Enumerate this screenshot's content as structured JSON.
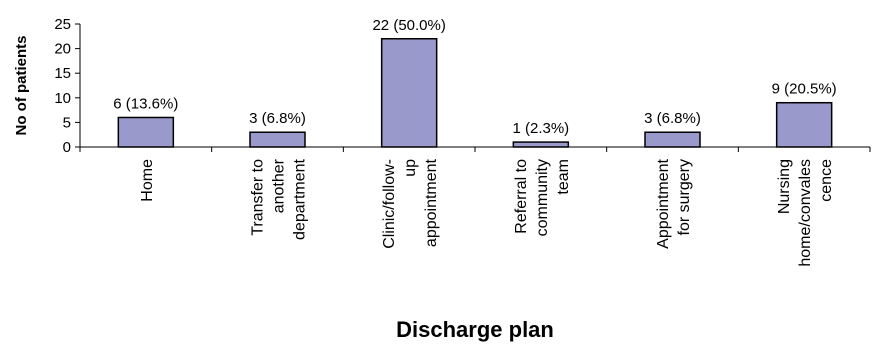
{
  "chart_data": {
    "type": "bar",
    "title": "",
    "xlabel": "Discharge plan",
    "ylabel": "No of patients",
    "ylim": [
      0,
      25
    ],
    "yticks": [
      0,
      5,
      10,
      15,
      20,
      25
    ],
    "grid": false,
    "categories": [
      [
        "Home"
      ],
      [
        "Transfer to",
        "another",
        "department"
      ],
      [
        "Clinic/follow-",
        "up",
        "appointment"
      ],
      [
        "Referral to",
        "community",
        "team"
      ],
      [
        "Appointment",
        "for surgery"
      ],
      [
        "Nursing",
        "home/convales",
        "cence"
      ]
    ],
    "values": [
      6,
      3,
      22,
      1,
      3,
      9
    ],
    "data_labels": [
      "6 (13.6%)",
      "3 (6.8%)",
      "22 (50.0%)",
      "1 (2.3%)",
      "3 (6.8%)",
      "9 (20.5%)"
    ],
    "bar_color": "#9999cc",
    "bar_stroke": "#000000"
  }
}
